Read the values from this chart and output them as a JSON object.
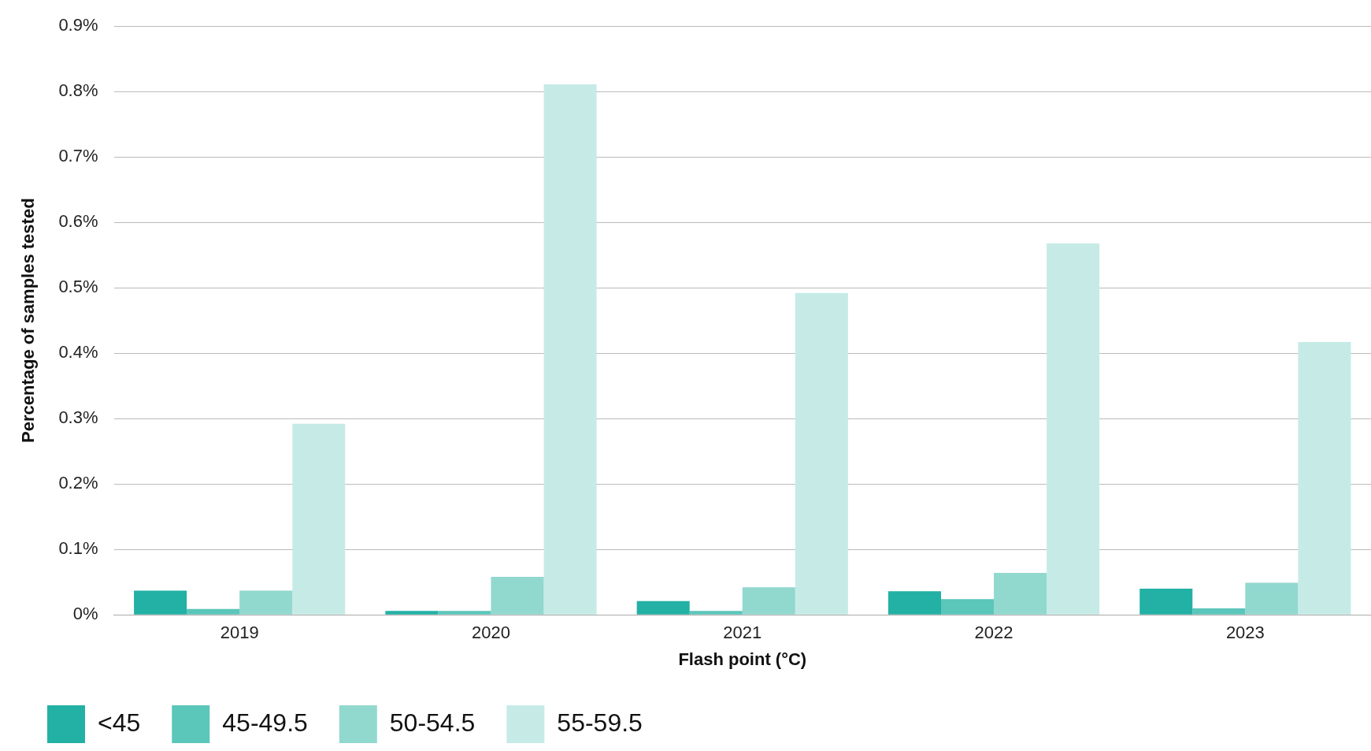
{
  "chart_data": {
    "type": "bar",
    "xlabel": "Flash point (°C)",
    "ylabel": "Percentage of samples tested",
    "categories": [
      "2019",
      "2020",
      "2021",
      "2022",
      "2023"
    ],
    "series": [
      {
        "name": "<45",
        "color": "#22b1a4",
        "values": [
          0.037,
          0.006,
          0.021,
          0.036,
          0.04
        ]
      },
      {
        "name": "45-49.5",
        "color": "#5bc6ba",
        "values": [
          0.009,
          0.006,
          0.006,
          0.024,
          0.01
        ]
      },
      {
        "name": "50-54.5",
        "color": "#91d8cf",
        "values": [
          0.037,
          0.058,
          0.042,
          0.064,
          0.049
        ]
      },
      {
        "name": "55-59.5",
        "color": "#c6ebe7",
        "values": [
          0.292,
          0.811,
          0.492,
          0.568,
          0.417
        ]
      }
    ],
    "ylim": [
      0,
      0.9
    ],
    "yticks": [
      {
        "value": 0,
        "label": "0%"
      },
      {
        "value": 0.1,
        "label": "0.1%"
      },
      {
        "value": 0.2,
        "label": "0.2%"
      },
      {
        "value": 0.3,
        "label": "0.3%"
      },
      {
        "value": 0.4,
        "label": "0.4%"
      },
      {
        "value": 0.5,
        "label": "0.5%"
      },
      {
        "value": 0.6,
        "label": "0.6%"
      },
      {
        "value": 0.7,
        "label": "0.7%"
      },
      {
        "value": 0.8,
        "label": "0.8%"
      },
      {
        "value": 0.9,
        "label": "0.9%"
      }
    ],
    "grid": "y",
    "legend": "bottom left"
  }
}
